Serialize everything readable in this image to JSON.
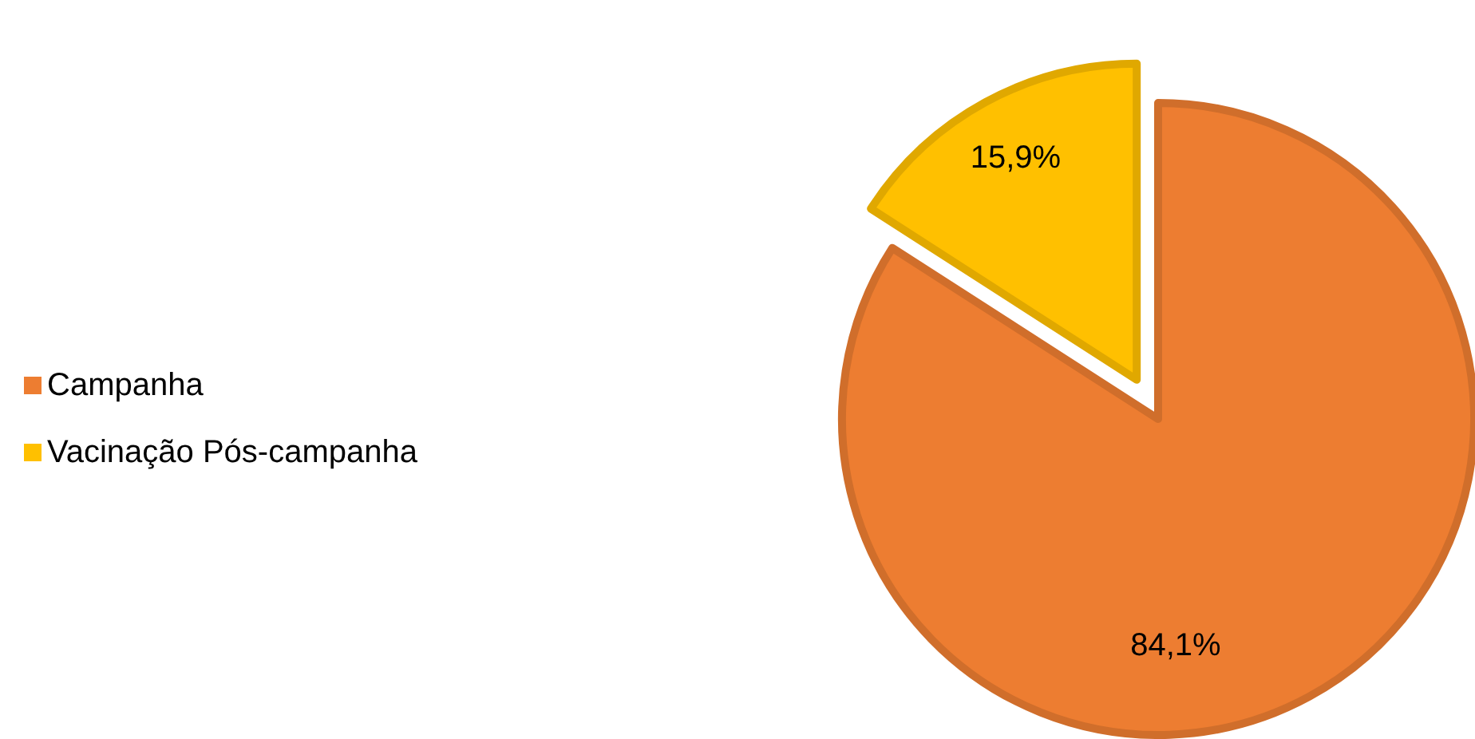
{
  "chart_data": {
    "type": "pie",
    "categories": [
      "Campanha",
      "Vacinação Pós-campanha"
    ],
    "values": [
      84.1,
      15.9
    ],
    "colors": [
      "#ed7d31",
      "#ffc000"
    ],
    "value_labels": [
      "84,1%",
      "15,9%"
    ],
    "legend": "left"
  }
}
